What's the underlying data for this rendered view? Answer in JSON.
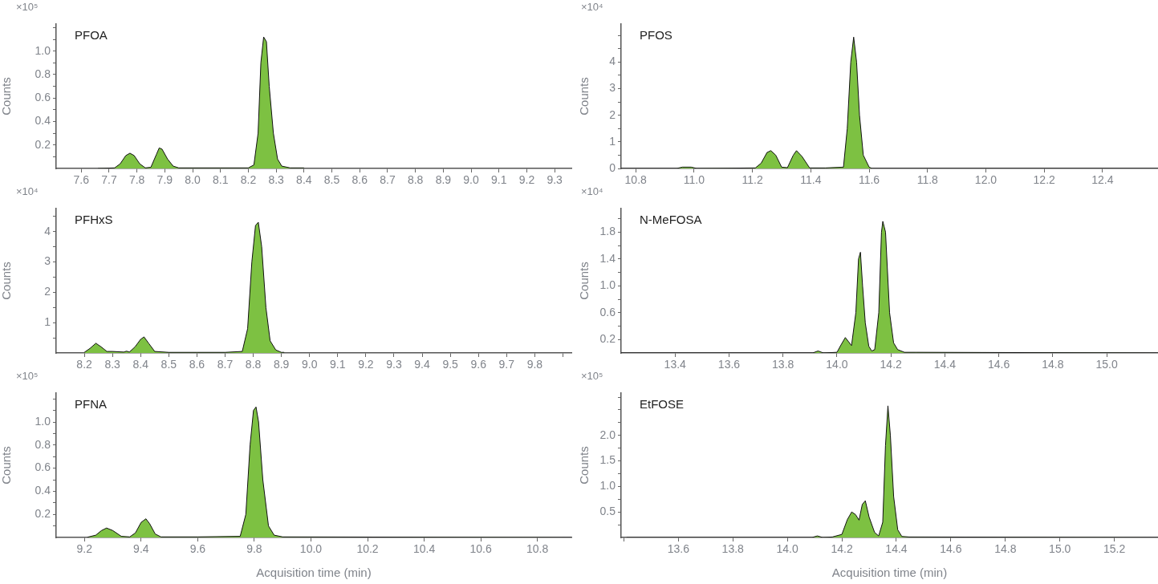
{
  "chart_data": [
    {
      "type": "area",
      "title": "PFOA",
      "ylabel": "Counts",
      "annotations": [
        "×10⁵"
      ],
      "color": "#7dc142",
      "grid": false,
      "x": [
        7.66,
        7.72,
        7.74,
        7.76,
        7.775,
        7.79,
        7.81,
        7.83,
        7.85,
        7.87,
        7.88,
        7.89,
        7.91,
        7.93,
        7.95,
        8.0,
        8.1,
        8.2,
        8.22,
        8.235,
        8.245,
        8.255,
        8.265,
        8.275,
        8.29,
        8.305,
        8.32,
        8.35,
        8.4
      ],
      "values": [
        0,
        0.005,
        0.04,
        0.11,
        0.13,
        0.11,
        0.04,
        0.005,
        0.01,
        0.12,
        0.175,
        0.165,
        0.08,
        0.02,
        0.005,
        0.005,
        0.005,
        0.005,
        0.03,
        0.3,
        0.9,
        1.12,
        1.08,
        0.7,
        0.3,
        0.08,
        0.02,
        0.005,
        0.005
      ],
      "xlim": [
        7.51,
        9.36
      ],
      "xticks": [
        7.6,
        7.7,
        7.8,
        7.9,
        {
          "value": 8,
          "label": "8.0"
        },
        8.1,
        8.2,
        8.3,
        8.4,
        8.5,
        8.6,
        8.7,
        8.8,
        8.9,
        {
          "value": 9,
          "label": "9.0"
        },
        9.1,
        9.2,
        9.3
      ],
      "ylim": [
        0,
        1.23
      ],
      "yticks": [
        {
          "value": 0.1,
          "label": null
        },
        0.2,
        {
          "value": 0.3,
          "label": null
        },
        0.4,
        {
          "value": 0.5,
          "label": null
        },
        0.6,
        {
          "value": 0.7,
          "label": null
        },
        0.8,
        {
          "value": 0.9,
          "label": null
        },
        {
          "value": 1,
          "label": "1.0"
        },
        {
          "value": 1.1,
          "label": null
        },
        {
          "value": 1.2,
          "label": null
        }
      ]
    },
    {
      "type": "area",
      "title": "PFOS",
      "ylabel": "Counts",
      "annotations": [
        "×10⁴"
      ],
      "color": "#7dc142",
      "grid": false,
      "x": [
        10.75,
        10.94,
        10.96,
        10.99,
        11.01,
        11.21,
        11.23,
        11.25,
        11.263,
        11.28,
        11.3,
        11.32,
        11.34,
        11.351,
        11.37,
        11.396,
        11.45,
        11.512,
        11.525,
        11.537,
        11.547,
        11.557,
        11.567,
        11.58,
        11.6,
        11.61,
        12.59
      ],
      "values": [
        0,
        0,
        0.05,
        0.05,
        0,
        0.02,
        0.2,
        0.6,
        0.67,
        0.5,
        0.05,
        0.03,
        0.5,
        0.67,
        0.45,
        0.02,
        0.02,
        0.05,
        1.5,
        4.0,
        4.94,
        4.0,
        2.0,
        0.5,
        0.05,
        0,
        0
      ],
      "xlim": [
        10.75,
        12.59
      ],
      "xticks": [
        10.8,
        {
          "value": 11,
          "label": "11.0"
        },
        11.2,
        11.4,
        11.6,
        11.8,
        {
          "value": 12,
          "label": "12.0"
        },
        12.2,
        12.4
      ],
      "ylim": [
        0,
        5.43
      ],
      "yticks": [
        0,
        {
          "value": 0.5,
          "label": null
        },
        1,
        {
          "value": 1.5,
          "label": null
        },
        2,
        {
          "value": 2.5,
          "label": null
        },
        3,
        {
          "value": 3.5,
          "label": null
        },
        4,
        {
          "value": 4.5,
          "label": null
        },
        {
          "value": 5,
          "label": null
        }
      ]
    },
    {
      "type": "area",
      "title": "PFHxS",
      "ylabel": "Counts",
      "annotations": [
        "×10⁴"
      ],
      "color": "#7dc142",
      "grid": false,
      "x": [
        8.2,
        8.22,
        8.241,
        8.26,
        8.28,
        8.3,
        8.34,
        8.35,
        8.36,
        8.38,
        8.4,
        8.412,
        8.43,
        8.45,
        8.5,
        8.6,
        8.7,
        8.761,
        8.78,
        8.795,
        8.808,
        8.818,
        8.83,
        8.845,
        8.86,
        8.88,
        8.9,
        8.91
      ],
      "values": [
        0.02,
        0.15,
        0.32,
        0.2,
        0.05,
        0.05,
        0.03,
        0.06,
        0.03,
        0.2,
        0.45,
        0.53,
        0.3,
        0.05,
        0.02,
        0.02,
        0.02,
        0.05,
        0.8,
        3.0,
        4.2,
        4.31,
        3.5,
        1.5,
        0.4,
        0.1,
        0.02,
        0.02
      ],
      "xlim": [
        8.1,
        9.93
      ],
      "xticks": [
        8.2,
        8.3,
        8.4,
        8.5,
        8.6,
        8.7,
        8.8,
        8.9,
        {
          "value": 9,
          "label": "9.0"
        },
        9.1,
        9.2,
        9.3,
        9.4,
        9.5,
        9.6,
        9.7,
        9.8,
        {
          "value": 9.9,
          "label": null
        }
      ],
      "ylim": [
        0,
        4.76
      ],
      "yticks": [
        {
          "value": 0.5,
          "label": null
        },
        1,
        {
          "value": 1.5,
          "label": null
        },
        2,
        {
          "value": 2.5,
          "label": null
        },
        3,
        {
          "value": 3.5,
          "label": null
        },
        4,
        {
          "value": 4.5,
          "label": null
        }
      ]
    },
    {
      "type": "area",
      "title": "N-MeFOSA",
      "ylabel": "Counts",
      "annotations": [
        "×10⁴"
      ],
      "color": "#7dc142",
      "grid": false,
      "x": [
        13.2,
        13.91,
        13.93,
        13.95,
        14.0,
        14.015,
        14.031,
        14.054,
        14.07,
        14.08,
        14.087,
        14.095,
        14.105,
        14.118,
        14.129,
        14.14,
        14.155,
        14.165,
        14.17,
        14.18,
        14.195,
        14.21,
        14.225,
        14.25,
        14.294,
        15.19
      ],
      "values": [
        0,
        0,
        0.03,
        0,
        0.01,
        0.12,
        0.23,
        0.11,
        0.6,
        1.4,
        1.5,
        1.0,
        0.45,
        0.1,
        0.03,
        0.05,
        0.6,
        1.8,
        1.96,
        1.8,
        0.6,
        0.15,
        0.05,
        0.01,
        0.01,
        0
      ],
      "xlim": [
        13.2,
        15.19
      ],
      "xticks": [
        13.4,
        13.6,
        13.8,
        {
          "value": 14,
          "label": "14.0"
        },
        14.2,
        14.4,
        14.6,
        14.8,
        {
          "value": 15,
          "label": "15.0"
        }
      ],
      "ylim": [
        0,
        2.15
      ],
      "yticks": [
        0.2,
        {
          "value": 0.4,
          "label": null
        },
        0.6,
        {
          "value": 0.8,
          "label": null
        },
        {
          "value": 1,
          "label": "1.0"
        },
        {
          "value": 1.2,
          "label": null
        },
        1.4,
        {
          "value": 1.6,
          "label": null
        },
        1.8,
        {
          "value": 2,
          "label": null
        }
      ]
    },
    {
      "type": "area",
      "title": "PFNA",
      "ylabel": "Counts",
      "xlabel": "Acquisition time (min)",
      "annotations": [
        "×10⁵"
      ],
      "color": "#7dc142",
      "grid": false,
      "x": [
        9.21,
        9.24,
        9.26,
        9.278,
        9.3,
        9.33,
        9.36,
        9.38,
        9.4,
        9.417,
        9.43,
        9.45,
        9.47,
        9.6,
        9.75,
        9.77,
        9.785,
        9.797,
        9.806,
        9.815,
        9.83,
        9.85,
        9.87,
        9.9,
        10.92
      ],
      "values": [
        0.002,
        0.02,
        0.06,
        0.082,
        0.06,
        0.01,
        0.005,
        0.04,
        0.13,
        0.162,
        0.12,
        0.03,
        0.005,
        0.005,
        0.01,
        0.2,
        0.8,
        1.1,
        1.13,
        1.0,
        0.5,
        0.1,
        0.02,
        0.005,
        0
      ],
      "xlim": [
        9.1,
        10.92
      ],
      "xticks": [
        9.2,
        9.4,
        9.6,
        9.8,
        {
          "value": 10,
          "label": "10.0"
        },
        10.2,
        10.4,
        10.6,
        10.8
      ],
      "ylim": [
        0,
        1.25
      ],
      "yticks": [
        {
          "value": 0.1,
          "label": null
        },
        0.2,
        {
          "value": 0.3,
          "label": null
        },
        0.4,
        {
          "value": 0.5,
          "label": null
        },
        0.6,
        {
          "value": 0.7,
          "label": null
        },
        0.8,
        {
          "value": 0.9,
          "label": null
        },
        {
          "value": 1,
          "label": "1.0"
        },
        {
          "value": 1.1,
          "label": null
        },
        {
          "value": 1.2,
          "label": null
        }
      ]
    },
    {
      "type": "area",
      "title": "EtFOSE",
      "ylabel": "Counts",
      "xlabel": "Acquisition time (min)",
      "annotations": [
        "×10⁵"
      ],
      "color": "#7dc142",
      "grid": false,
      "x": [
        13.41,
        14.09,
        14.11,
        14.13,
        14.165,
        14.2,
        14.22,
        14.236,
        14.25,
        14.263,
        14.275,
        14.286,
        14.3,
        14.32,
        14.335,
        14.35,
        14.36,
        14.369,
        14.378,
        14.39,
        14.405,
        14.42,
        14.447,
        15.36
      ],
      "values": [
        0,
        0,
        0.03,
        0,
        0.01,
        0.06,
        0.35,
        0.5,
        0.45,
        0.34,
        0.65,
        0.72,
        0.4,
        0.1,
        0.03,
        0.3,
        1.8,
        2.58,
        2.0,
        0.8,
        0.15,
        0.02,
        0.01,
        0
      ],
      "xlim": [
        13.39,
        15.36
      ],
      "xticks": [
        {
          "value": 13.4,
          "label": null
        },
        13.6,
        13.8,
        {
          "value": 14,
          "label": "14.0"
        },
        14.2,
        14.4,
        14.6,
        14.8,
        {
          "value": 15,
          "label": "15.0"
        },
        15.2
      ],
      "ylim": [
        0,
        2.83
      ],
      "yticks": [
        {
          "value": 0.25,
          "label": null
        },
        0.5,
        {
          "value": 0.75,
          "label": null
        },
        {
          "value": 1,
          "label": "1.0"
        },
        {
          "value": 1.25,
          "label": null
        },
        1.5,
        {
          "value": 1.75,
          "label": null
        },
        {
          "value": 2,
          "label": "2.0"
        },
        {
          "value": 2.25,
          "label": null
        },
        {
          "value": 2.5,
          "label": null
        },
        {
          "value": 2.75,
          "label": null
        }
      ]
    }
  ]
}
